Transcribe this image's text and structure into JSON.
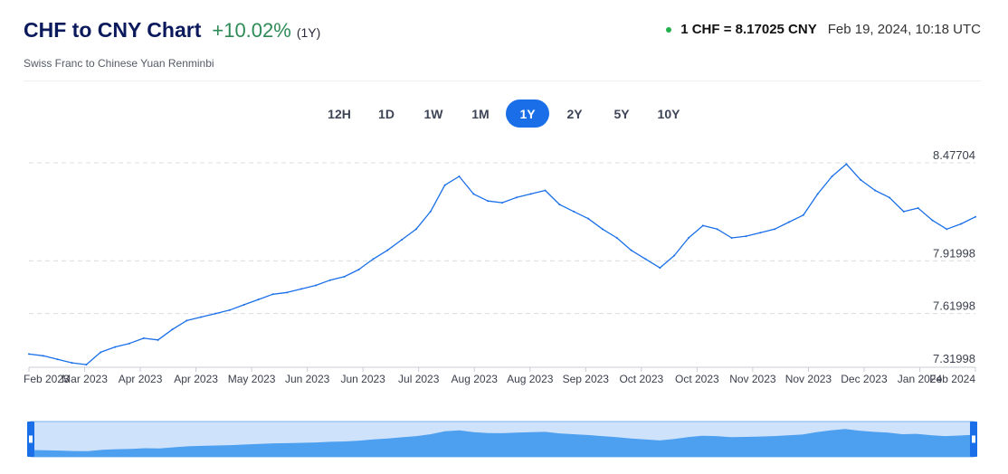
{
  "header": {
    "title": "CHF to CNY Chart",
    "change": "+10.02%",
    "period": "(1Y)",
    "subtitle": "Swiss Franc to Chinese Yuan Renminbi",
    "rate": "1 CHF = 8.17025 CNY",
    "timestamp": "Feb 19, 2024, 10:18 UTC"
  },
  "ranges": [
    "12H",
    "1D",
    "1W",
    "1M",
    "1Y",
    "2Y",
    "5Y",
    "10Y"
  ],
  "active_range": "1Y",
  "colors": {
    "line": "#1a6fe8",
    "accent": "#1a6fe8",
    "positive": "#2e8b57",
    "navigator_fill": "#4d9ff0"
  },
  "chart_data": {
    "type": "line",
    "title": "",
    "xlabel": "",
    "ylabel": "",
    "ylim": [
      7.31998,
      8.47704
    ],
    "y_ticks": [
      "8.47704",
      "7.91998",
      "7.61998",
      "7.31998"
    ],
    "x_ticks": [
      "Feb 2023",
      "Mar 2023",
      "Apr 2023",
      "Apr 2023",
      "May 2023",
      "Jun 2023",
      "Jun 2023",
      "Jul 2023",
      "Aug 2023",
      "Aug 2023",
      "Sep 2023",
      "Oct 2023",
      "Oct 2023",
      "Nov 2023",
      "Nov 2023",
      "Dec 2023",
      "Jan 2024",
      "Feb 2024"
    ],
    "grid": true,
    "series": [
      {
        "values": [
          7.39,
          7.38,
          7.36,
          7.34,
          7.33,
          7.4,
          7.43,
          7.45,
          7.48,
          7.47,
          7.53,
          7.58,
          7.6,
          7.62,
          7.64,
          7.67,
          7.7,
          7.73,
          7.74,
          7.76,
          7.78,
          7.81,
          7.83,
          7.87,
          7.93,
          7.98,
          8.04,
          8.1,
          8.2,
          8.35,
          8.4,
          8.3,
          8.26,
          8.25,
          8.28,
          8.3,
          8.32,
          8.24,
          8.2,
          8.16,
          8.1,
          8.05,
          7.98,
          7.93,
          7.88,
          7.95,
          8.05,
          8.12,
          8.1,
          8.05,
          8.06,
          8.08,
          8.1,
          8.14,
          8.18,
          8.3,
          8.4,
          8.47,
          8.38,
          8.32,
          8.28,
          8.2,
          8.22,
          8.15,
          8.1,
          8.13,
          8.17
        ]
      }
    ]
  }
}
